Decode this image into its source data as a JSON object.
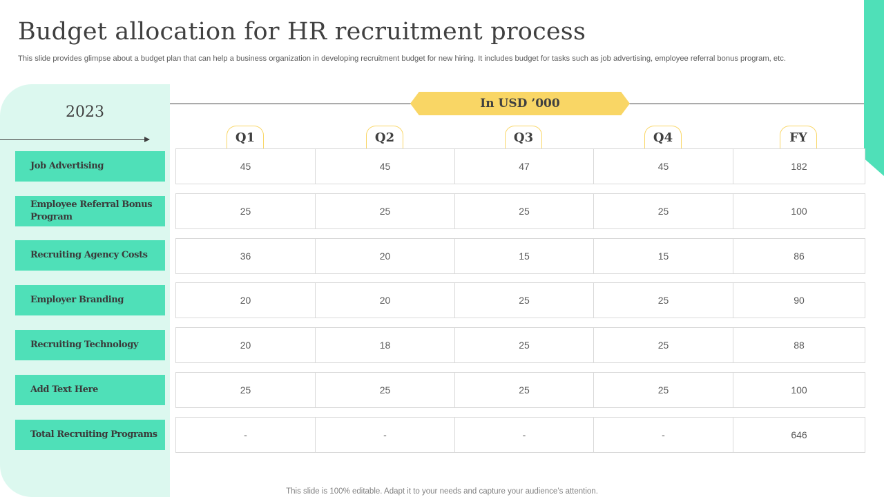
{
  "slide": {
    "title": "Budget allocation for HR recruitment process",
    "subtitle": "This slide provides glimpse about a budget plan that can help a business organization in developing recruitment budget for new hiring. It includes budget for tasks such as job advertising, employee referral bonus program, etc.",
    "footer": "This slide is 100% editable. Adapt it to your needs and capture your audience’s attention."
  },
  "table": {
    "year": "2023",
    "unit_label": "In USD ’000",
    "columns": [
      "Q1",
      "Q2",
      "Q3",
      "Q4",
      "FY"
    ],
    "rows": [
      {
        "label": "Job Advertising",
        "values": [
          "45",
          "45",
          "47",
          "45",
          "182"
        ]
      },
      {
        "label": "Employee Referral Bonus Program",
        "values": [
          "25",
          "25",
          "25",
          "25",
          "100"
        ]
      },
      {
        "label": "Recruiting Agency Costs",
        "values": [
          "36",
          "20",
          "15",
          "15",
          "86"
        ]
      },
      {
        "label": "Employer Branding",
        "values": [
          "20",
          "20",
          "25",
          "25",
          "90"
        ]
      },
      {
        "label": "Recruiting Technology",
        "values": [
          "20",
          "18",
          "25",
          "25",
          "88"
        ]
      },
      {
        "label": "Add Text Here",
        "values": [
          "25",
          "25",
          "25",
          "25",
          "100"
        ]
      },
      {
        "label": "Total Recruiting Programs",
        "values": [
          "-",
          "-",
          "-",
          "-",
          "646"
        ]
      }
    ]
  },
  "colors": {
    "accent_green": "#4fe0b8",
    "panel_mint": "#dcf8ef",
    "banner_yellow": "#f9d665",
    "text_dark": "#404040"
  }
}
